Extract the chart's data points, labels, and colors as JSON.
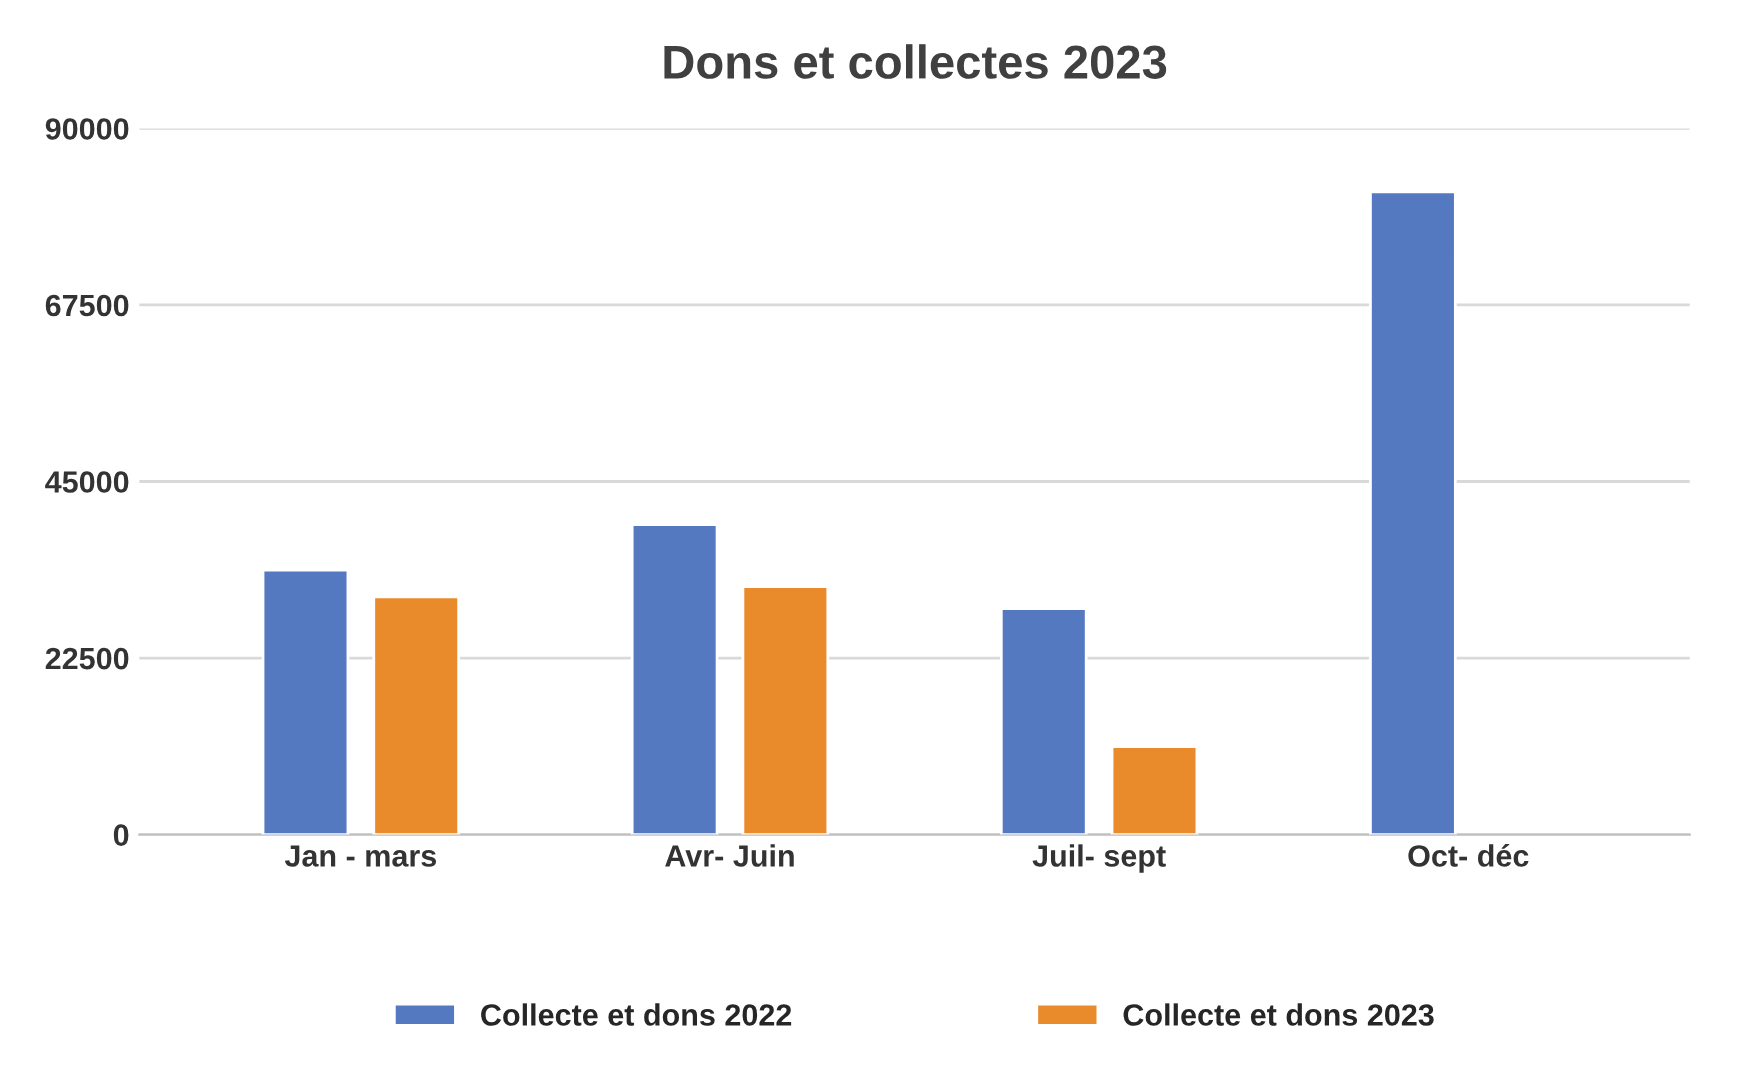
{
  "chart_data": {
    "type": "bar",
    "title": "Dons et collectes 2023",
    "categories": [
      "Jan - mars",
      "Avr- Juin",
      "Juil- sept",
      "Oct- déc"
    ],
    "series": [
      {
        "name": "Collecte et dons 2022",
        "color": "#5479c1",
        "values": [
          33700,
          39500,
          28800,
          81900
        ]
      },
      {
        "name": "Collecte et dons 2023",
        "color": "#e98a2b",
        "values": [
          30300,
          31600,
          11200,
          null
        ]
      }
    ],
    "ylim": [
      0,
      90000
    ],
    "yticks": [
      0,
      22500,
      45000,
      67500,
      90000
    ],
    "grid": "y",
    "legend": "bottom"
  }
}
